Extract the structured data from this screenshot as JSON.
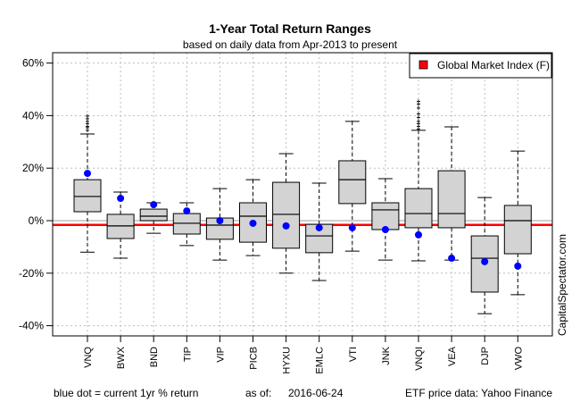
{
  "chart_data": {
    "type": "boxplot",
    "title": "1-Year Total Return Ranges",
    "subtitle": "based on daily data from Apr-2013 to present",
    "xlabel": "",
    "ylabel": "",
    "ylim": [
      -44,
      64
    ],
    "yticks": [
      -40,
      -20,
      0,
      20,
      40,
      60
    ],
    "ytick_labels": [
      "-40%",
      "-20%",
      "0%",
      "20%",
      "40%",
      "60%"
    ],
    "grid": true,
    "legend": {
      "position": "top-right",
      "entries": [
        {
          "label": "Global Market Index (F)",
          "color": "#ff0000"
        }
      ]
    },
    "reference_line": {
      "name": "Global Market Index (F)",
      "value": -1.6,
      "color": "#ff0000"
    },
    "zero_line": {
      "value": 0,
      "color": "#bebebe"
    },
    "categories": [
      "VNQ",
      "BWX",
      "BND",
      "TIP",
      "VIP",
      "PICB",
      "HYXU",
      "EMLC",
      "VTI",
      "JNK",
      "VNQI",
      "VEA",
      "DJP",
      "VWO"
    ],
    "series": [
      {
        "name": "VNQ",
        "whisker_low": -12,
        "q1": 3.4,
        "median": 9.2,
        "q3": 15.6,
        "whisker_high": 33,
        "current": 18,
        "outliers": [
          34.5,
          35.5,
          36,
          37,
          38,
          39,
          40
        ]
      },
      {
        "name": "BWX",
        "whisker_low": -14.3,
        "q1": -6.8,
        "median": -2,
        "q3": 2.4,
        "whisker_high": 10.9,
        "current": 8.5,
        "outliers": []
      },
      {
        "name": "BND",
        "whisker_low": -4.8,
        "q1": 0,
        "median": 1.7,
        "q3": 4.4,
        "whisker_high": 6.8,
        "current": 6.1,
        "outliers": []
      },
      {
        "name": "TIP",
        "whisker_low": -9.5,
        "q1": -5.1,
        "median": -1,
        "q3": 2.7,
        "whisker_high": 6.8,
        "current": 3.7,
        "outliers": []
      },
      {
        "name": "VIP",
        "whisker_low": -15,
        "q1": -7.1,
        "median": -1.7,
        "q3": 1,
        "whisker_high": 12.2,
        "current": 0,
        "outliers": []
      },
      {
        "name": "PICB",
        "whisker_low": -13.3,
        "q1": -8.2,
        "median": 1.7,
        "q3": 6.8,
        "whisker_high": 15.6,
        "current": -1,
        "outliers": []
      },
      {
        "name": "HYXU",
        "whisker_low": -20,
        "q1": -10.5,
        "median": 2.4,
        "q3": 14.6,
        "whisker_high": 25.5,
        "current": -2,
        "outliers": []
      },
      {
        "name": "EMLC",
        "whisker_low": -22.8,
        "q1": -12.2,
        "median": -5.8,
        "q3": -1.4,
        "whisker_high": 14.3,
        "current": -2.7,
        "outliers": []
      },
      {
        "name": "VTI",
        "whisker_low": -11.6,
        "q1": 6.5,
        "median": 15.6,
        "q3": 22.8,
        "whisker_high": 37.8,
        "current": -2.7,
        "outliers": []
      },
      {
        "name": "JNK",
        "whisker_low": -15,
        "q1": -3.4,
        "median": 4.1,
        "q3": 6.8,
        "whisker_high": 16,
        "current": -3.4,
        "outliers": []
      },
      {
        "name": "VNQI",
        "whisker_low": -15.3,
        "q1": -2.7,
        "median": 2.7,
        "q3": 12.2,
        "whisker_high": 34.4,
        "current": -5.4,
        "outliers": [
          35,
          36,
          37,
          38,
          39.5,
          40.8,
          43,
          44.5,
          45.6
        ]
      },
      {
        "name": "VEA",
        "whisker_low": -15,
        "q1": -2.7,
        "median": 2.7,
        "q3": 19,
        "whisker_high": 35.7,
        "current": -14.3,
        "outliers": []
      },
      {
        "name": "DJP",
        "whisker_low": -35.4,
        "q1": -27.2,
        "median": -14.3,
        "q3": -5.8,
        "whisker_high": 8.8,
        "current": -15.6,
        "outliers": []
      },
      {
        "name": "VWO",
        "whisker_low": -28.2,
        "q1": -12.6,
        "median": 0,
        "q3": 5.8,
        "whisker_high": 26.5,
        "current": -17.3,
        "outliers": []
      }
    ],
    "colors": {
      "box_fill": "#d3d3d3",
      "current_dot": "#0000ff",
      "grid": "#bebebe"
    }
  },
  "footer": {
    "note": "blue dot = current 1yr % return",
    "asof_label": "as of:",
    "asof_date": "2016-06-24",
    "source": "ETF price data: Yahoo Finance"
  },
  "watermark": "CapitalSpectator.com"
}
